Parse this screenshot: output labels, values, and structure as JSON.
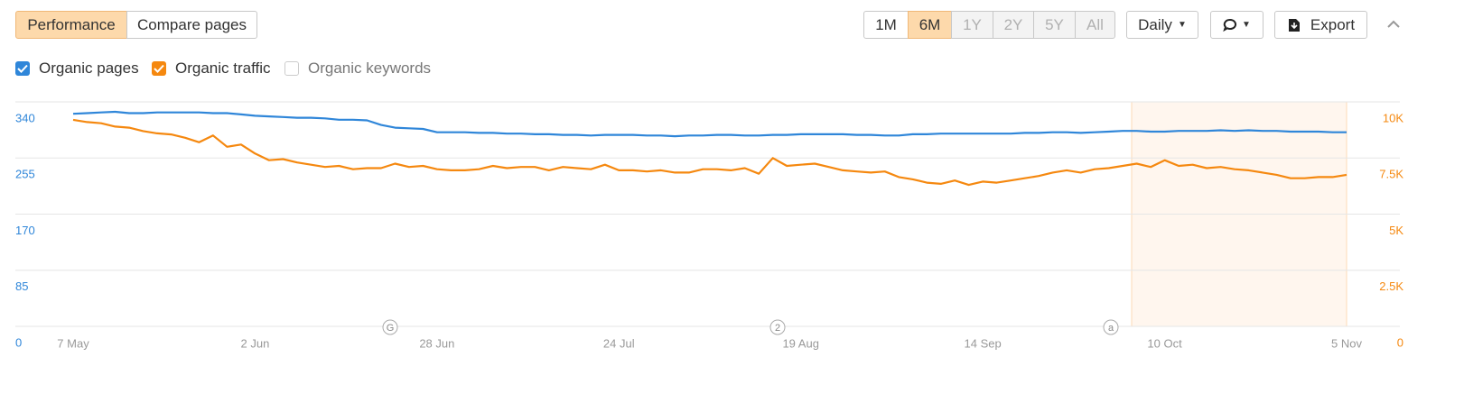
{
  "toolbar": {
    "tabs": [
      "Performance",
      "Compare pages"
    ],
    "ranges": [
      "1M",
      "6M",
      "1Y",
      "2Y",
      "5Y",
      "All"
    ],
    "interval": "Daily",
    "export": "Export",
    "unchecked": "Organic keywords"
  },
  "annotations": [
    "G",
    "2",
    "a"
  ],
  "chart_data": {
    "type": "line",
    "categories": [
      "7 May",
      null,
      null,
      null,
      null,
      null,
      null,
      null,
      null,
      null,
      null,
      null,
      null,
      "2 Jun",
      null,
      null,
      null,
      null,
      null,
      null,
      null,
      null,
      null,
      null,
      null,
      null,
      "28 Jun",
      null,
      null,
      null,
      null,
      null,
      null,
      null,
      null,
      null,
      null,
      null,
      null,
      "24 Jul",
      null,
      null,
      null,
      null,
      null,
      null,
      null,
      null,
      null,
      null,
      null,
      null,
      "19 Aug",
      null,
      null,
      null,
      null,
      null,
      null,
      null,
      null,
      null,
      null,
      null,
      null,
      "14 Sep",
      null,
      null,
      null,
      null,
      null,
      null,
      null,
      null,
      null,
      null,
      null,
      null,
      "10 Oct",
      null,
      null,
      null,
      null,
      null,
      null,
      null,
      null,
      null,
      null,
      null,
      null,
      "5 Nov"
    ],
    "series": [
      {
        "name": "Organic pages",
        "color": "#2f86d9",
        "values": [
          322,
          323,
          324,
          325,
          323,
          323,
          324,
          324,
          324,
          324,
          323,
          323,
          321,
          319,
          318,
          317,
          316,
          316,
          315,
          313,
          313,
          312,
          305,
          301,
          300,
          299,
          294,
          294,
          294,
          293,
          293,
          292,
          292,
          291,
          291,
          290,
          290,
          289,
          290,
          290,
          290,
          289,
          289,
          288,
          289,
          289,
          290,
          290,
          289,
          289,
          290,
          290,
          291,
          291,
          291,
          291,
          290,
          290,
          289,
          289,
          291,
          291,
          292,
          292,
          292,
          292,
          292,
          292,
          293,
          293,
          294,
          294,
          293,
          294,
          295,
          296,
          296,
          295,
          295,
          296,
          296,
          296,
          297,
          296,
          297,
          296,
          296,
          295,
          295,
          295,
          294,
          294
        ]
      },
      {
        "name": "Organic traffic",
        "color": "#f5880f",
        "axis": "y2",
        "values": [
          9200,
          9100,
          9050,
          8900,
          8850,
          8700,
          8600,
          8550,
          8400,
          8200,
          8500,
          8000,
          8100,
          7700,
          7400,
          7450,
          7300,
          7200,
          7100,
          7150,
          7000,
          7050,
          7050,
          7250,
          7100,
          7150,
          7000,
          6950,
          6950,
          7000,
          7150,
          7050,
          7100,
          7100,
          6950,
          7100,
          7050,
          7000,
          7200,
          6950,
          6950,
          6900,
          6950,
          6850,
          6850,
          7000,
          7000,
          6950,
          7050,
          6800,
          7500,
          7150,
          7200,
          7250,
          7100,
          6950,
          6900,
          6850,
          6900,
          6650,
          6550,
          6400,
          6350,
          6500,
          6300,
          6450,
          6400,
          6500,
          6600,
          6700,
          6850,
          6950,
          6850,
          7000,
          7050,
          7150,
          7250,
          7100,
          7400,
          7150,
          7200,
          7050,
          7100,
          7000,
          6950,
          6850,
          6750,
          6600,
          6600,
          6650,
          6650,
          6750
        ]
      }
    ],
    "ylim": [
      0,
      340
    ],
    "yticks": [
      0,
      85,
      170,
      255,
      340
    ],
    "y2lim": [
      0,
      10000
    ],
    "y2ticks": [
      0,
      {
        "value": 2500,
        "label": "2.5K"
      },
      {
        "value": 5000,
        "label": "5K"
      },
      {
        "value": 7500,
        "label": "7.5K"
      },
      {
        "value": 10000,
        "label": "10K"
      }
    ],
    "grid": true
  }
}
